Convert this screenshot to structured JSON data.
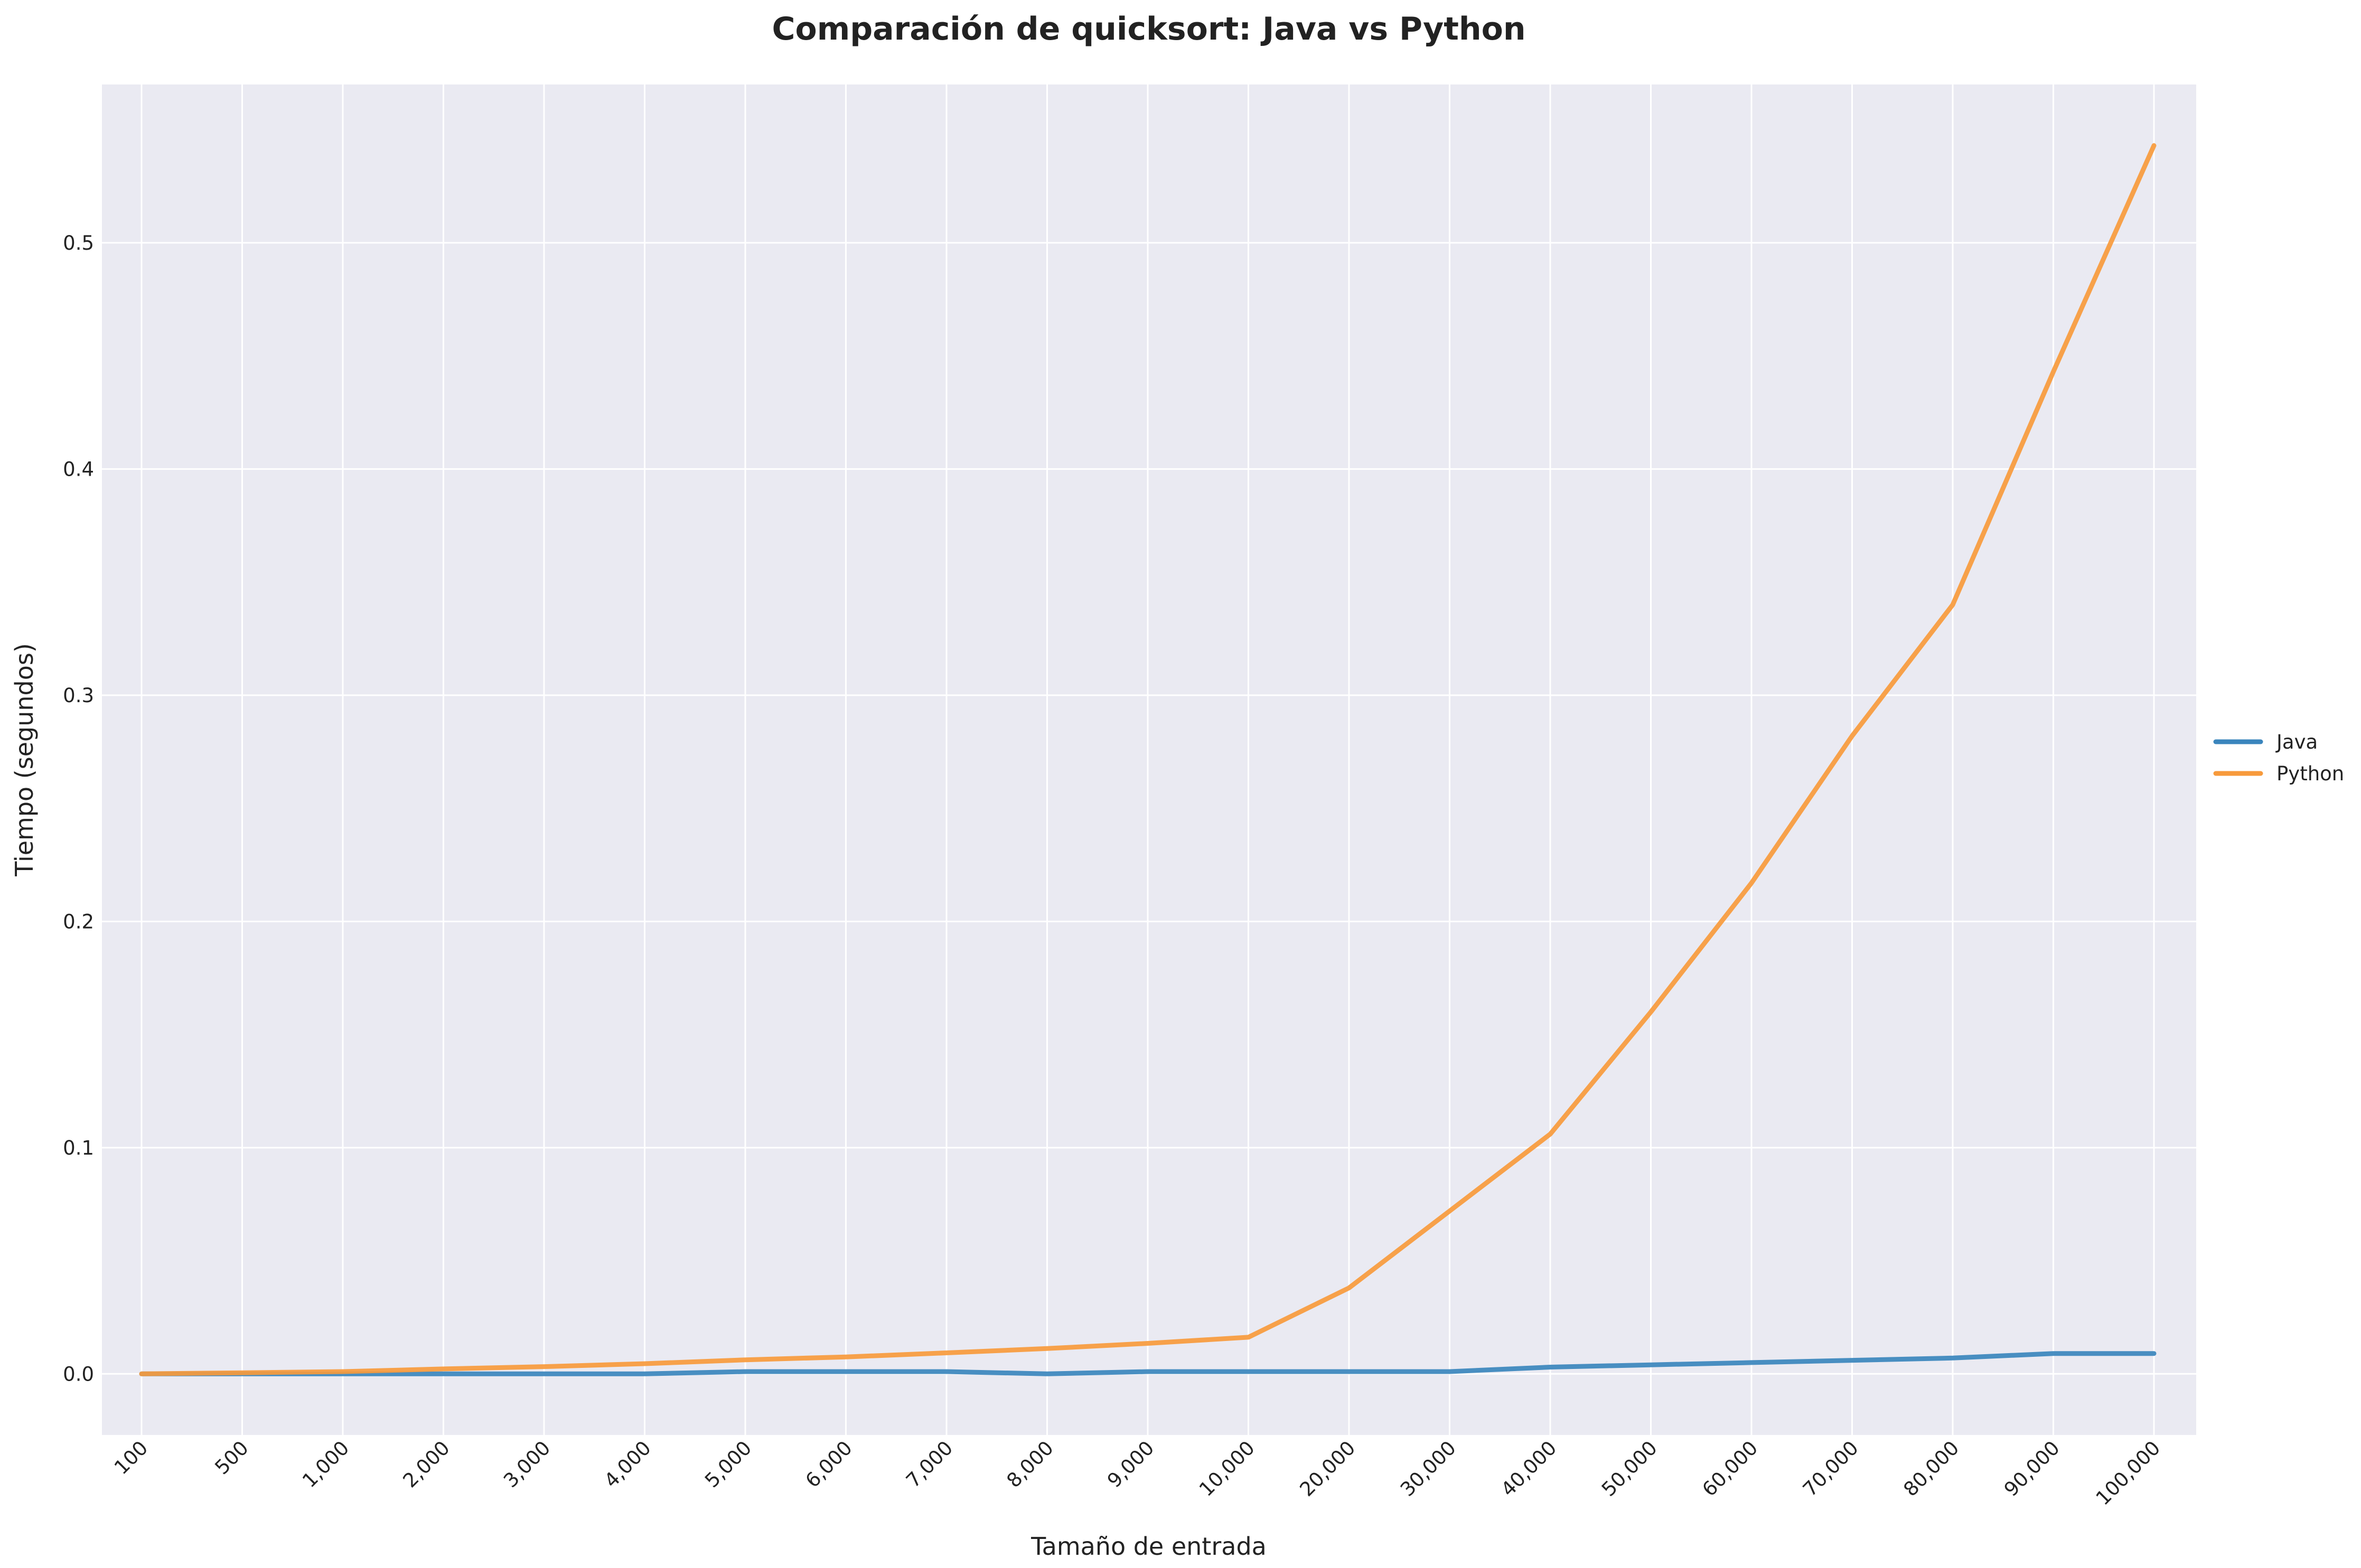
{
  "chart_data": {
    "type": "line",
    "title": "Comparación de quicksort: Java vs Python",
    "xlabel": "Tamaño de entrada",
    "ylabel": "Tiempo (segundos)",
    "categories": [
      "100",
      "500",
      "1,000",
      "2,000",
      "3,000",
      "4,000",
      "5,000",
      "6,000",
      "7,000",
      "8,000",
      "9,000",
      "10,000",
      "20,000",
      "30,000",
      "40,000",
      "50,000",
      "60,000",
      "70,000",
      "80,000",
      "90,000",
      "100,000"
    ],
    "yticks": [
      "0.0",
      "0.1",
      "0.2",
      "0.3",
      "0.4",
      "0.5"
    ],
    "ylim": [
      -0.027,
      0.57
    ],
    "grid": true,
    "legend_position": "center-right-outside",
    "series": [
      {
        "name": "Java",
        "color": "#3a85bd",
        "values": [
          0.0,
          0.0,
          0.0,
          0.0,
          0.0,
          0.0,
          0.001,
          0.001,
          0.001,
          0.0,
          0.001,
          0.001,
          0.001,
          0.001,
          0.003,
          0.004,
          0.005,
          0.006,
          0.007,
          0.009,
          0.009
        ]
      },
      {
        "name": "Python",
        "color": "#f79a3c",
        "values": [
          0.0,
          0.0005,
          0.001,
          0.0022,
          0.0032,
          0.0045,
          0.0062,
          0.0075,
          0.0093,
          0.0112,
          0.0135,
          0.0162,
          0.038,
          0.072,
          0.106,
          0.16,
          0.217,
          0.282,
          0.34,
          0.443,
          0.543
        ]
      }
    ],
    "colors": {
      "plot_background": "#eaeaf2",
      "grid": "#ffffff"
    }
  }
}
